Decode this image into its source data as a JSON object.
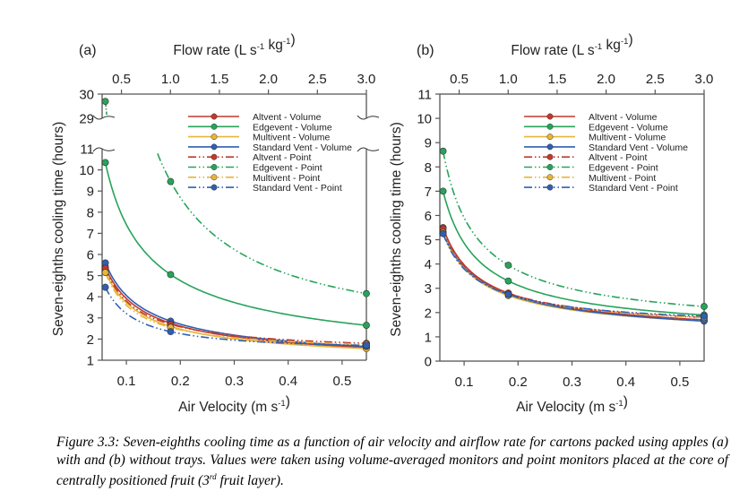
{
  "chart_data": [
    {
      "panel": "(a)",
      "type": "line",
      "title": "",
      "xlabel": "Air Velocity (m s^-1)",
      "x2label": "Flow rate (L s^-1 kg^-1)",
      "ylabel": "Seven-eighths cooling time (hours)",
      "xlim": [
        0.055,
        0.545
      ],
      "x_ticks": [
        0.1,
        0.2,
        0.3,
        0.4,
        0.5
      ],
      "x_tick_labels": [
        "0.1",
        "0.2",
        "0.3",
        "0.4",
        "0.5"
      ],
      "x2_ticks": [
        0.5,
        1.0,
        1.5,
        2.0,
        2.5,
        3.0
      ],
      "x2_tick_labels": [
        "0.5",
        "1.0",
        "1.5",
        "2.0",
        "2.5",
        "3.0"
      ],
      "x2_per_x": 5.505,
      "y_axis_break": true,
      "y_lower_range": [
        1,
        11
      ],
      "y_upper_range": [
        29,
        30
      ],
      "y_ticks_lower": [
        1,
        2,
        3,
        4,
        5,
        6,
        7,
        8,
        9,
        10,
        11
      ],
      "y_tick_labels_lower": [
        "1",
        "2",
        "3",
        "4",
        "5",
        "6",
        "7",
        "8",
        "9",
        "10",
        "11"
      ],
      "y_ticks_upper": [
        29,
        30
      ],
      "y_tick_labels_upper": [
        "29",
        "30"
      ],
      "legend_position": "top-right",
      "x": [
        0.061,
        0.182,
        0.545
      ],
      "series": [
        {
          "name": "Altvent - Volume",
          "color": "#c0392b",
          "style": "solid",
          "values": [
            5.4,
            2.75,
            1.6
          ]
        },
        {
          "name": "Edgevent - Volume",
          "color": "#27a35a",
          "style": "solid",
          "values": [
            10.35,
            5.05,
            2.65
          ]
        },
        {
          "name": "Multivent - Volume",
          "color": "#e8b53a",
          "style": "solid",
          "values": [
            5.2,
            2.6,
            1.55
          ]
        },
        {
          "name": "Standard Vent - Volume",
          "color": "#2f5fb3",
          "style": "solid",
          "values": [
            5.6,
            2.85,
            1.65
          ]
        },
        {
          "name": "Altvent - Point",
          "color": "#c0392b",
          "style": "dashdotdot",
          "values": [
            5.35,
            2.7,
            1.8
          ]
        },
        {
          "name": "Edgevent - Point",
          "color": "#27a35a",
          "style": "dashdotdot",
          "values": [
            29.7,
            9.45,
            4.15
          ]
        },
        {
          "name": "Multivent - Point",
          "color": "#e8b53a",
          "style": "dashdotdot",
          "values": [
            5.15,
            2.55,
            1.75
          ]
        },
        {
          "name": "Standard Vent - Point",
          "color": "#2f5fb3",
          "style": "dashdotdot",
          "values": [
            4.45,
            2.35,
            1.7
          ]
        }
      ]
    },
    {
      "panel": "(b)",
      "type": "line",
      "title": "",
      "xlabel": "Air Velocity (m s^-1)",
      "x2label": "Flow rate (L s^-1 kg^-1)",
      "ylabel": "Seven-eighths cooling time (hours)",
      "xlim": [
        0.055,
        0.545
      ],
      "x_ticks": [
        0.1,
        0.2,
        0.3,
        0.4,
        0.5
      ],
      "x_tick_labels": [
        "0.1",
        "0.2",
        "0.3",
        "0.4",
        "0.5"
      ],
      "x2_ticks": [
        0.5,
        1.0,
        1.5,
        2.0,
        2.5,
        3.0
      ],
      "x2_tick_labels": [
        "0.5",
        "1.0",
        "1.5",
        "2.0",
        "2.5",
        "3.0"
      ],
      "x2_per_x": 5.505,
      "y_axis_break": false,
      "ylim": [
        0,
        11
      ],
      "y_ticks": [
        0,
        1,
        2,
        3,
        4,
        5,
        6,
        7,
        8,
        9,
        10,
        11
      ],
      "y_tick_labels": [
        "0",
        "1",
        "2",
        "3",
        "4",
        "5",
        "6",
        "7",
        "8",
        "9",
        "10",
        "11"
      ],
      "legend_position": "top-right",
      "x": [
        0.061,
        0.182,
        0.545
      ],
      "series": [
        {
          "name": "Altvent - Volume",
          "color": "#c0392b",
          "style": "solid",
          "values": [
            5.5,
            2.8,
            1.7
          ]
        },
        {
          "name": "Edgevent - Volume",
          "color": "#27a35a",
          "style": "solid",
          "values": [
            7.0,
            3.3,
            1.9
          ]
        },
        {
          "name": "Multivent - Volume",
          "color": "#e8b53a",
          "style": "solid",
          "values": [
            5.3,
            2.7,
            1.65
          ]
        },
        {
          "name": "Standard Vent - Volume",
          "color": "#2f5fb3",
          "style": "solid",
          "values": [
            5.3,
            2.75,
            1.65
          ]
        },
        {
          "name": "Altvent - Point",
          "color": "#c0392b",
          "style": "dashdotdot",
          "values": [
            5.45,
            2.8,
            1.8
          ]
        },
        {
          "name": "Edgevent - Point",
          "color": "#27a35a",
          "style": "dashdotdot",
          "values": [
            8.65,
            3.95,
            2.25
          ]
        },
        {
          "name": "Multivent - Point",
          "color": "#e8b53a",
          "style": "dashdotdot",
          "values": [
            5.3,
            2.75,
            1.8
          ]
        },
        {
          "name": "Standard Vent - Point",
          "color": "#2f5fb3",
          "style": "dashdotdot",
          "values": [
            5.25,
            2.75,
            1.85
          ]
        }
      ]
    }
  ],
  "caption": {
    "text_before_sup": "Figure 3.3: Seven-eighths cooling time as a function of air velocity and airflow rate for cartons packed using apples (a) with and (b) without trays. Values were taken using volume-averaged monitors and point monitors placed at the core of centrally positioned fruit (3",
    "sup": "rd",
    "text_after_sup": " fruit layer)."
  }
}
